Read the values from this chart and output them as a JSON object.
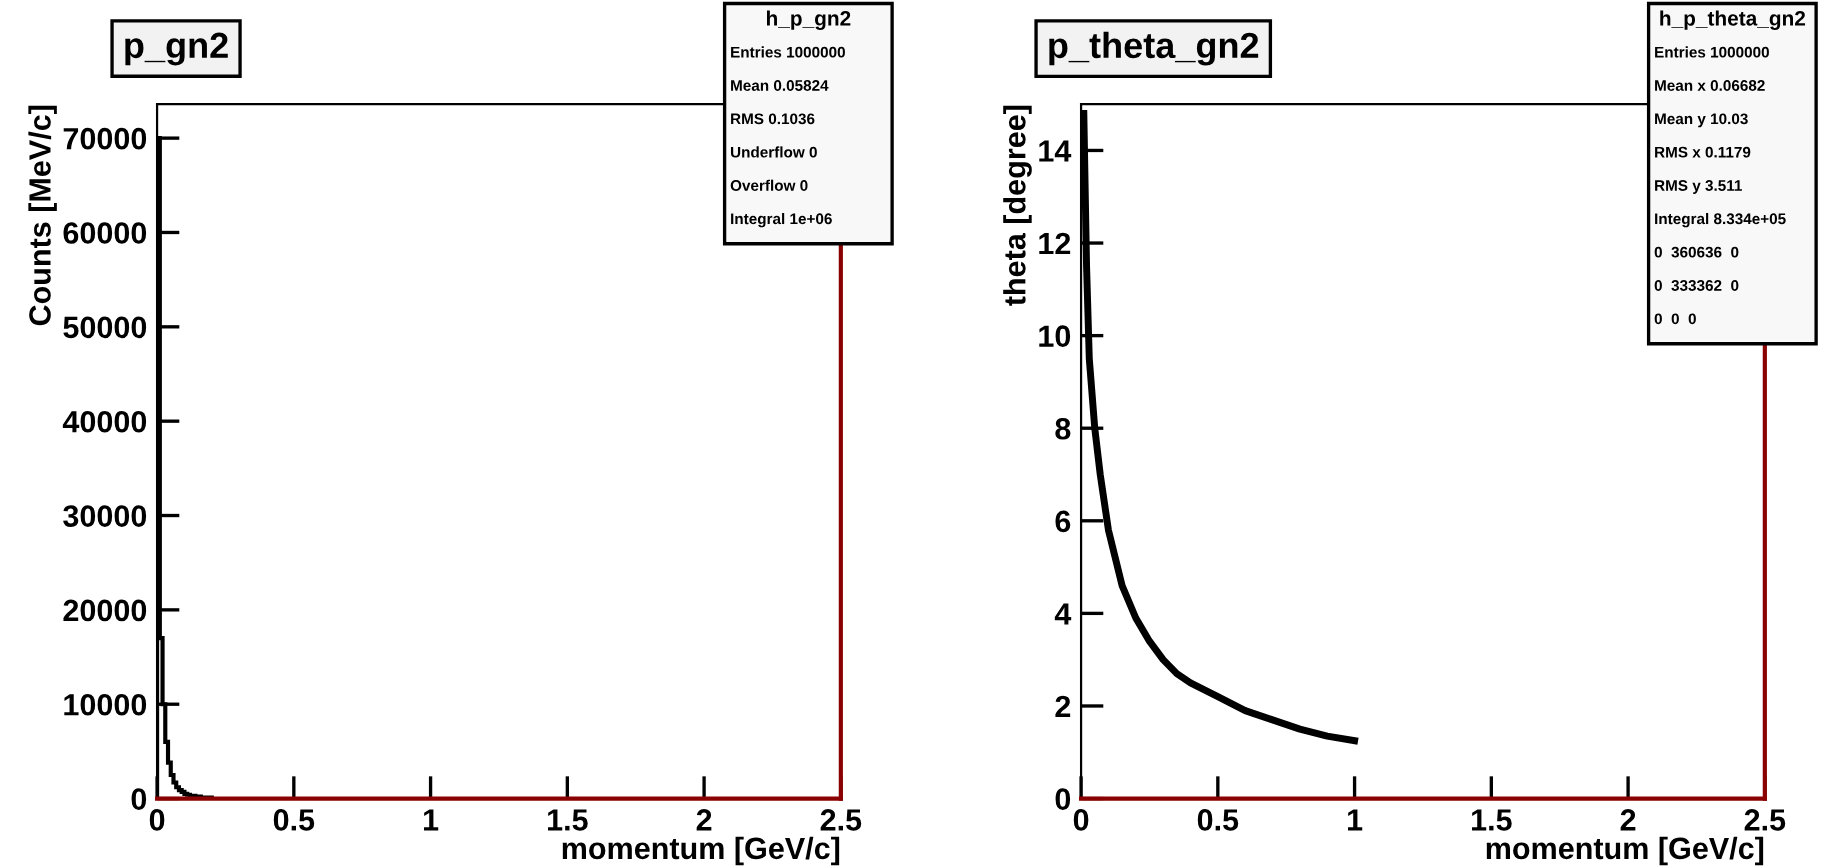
{
  "chart_data": [
    {
      "type": "histogram",
      "title": "p_gn2",
      "xlabel": "momentum [GeV/c]",
      "ylabel": "Counts [MeV/c]",
      "bins": [
        0,
        0.01,
        0.02,
        0.03,
        0.04,
        0.05,
        0.06,
        0.07,
        0.08,
        0.09,
        0.1,
        0.11,
        0.12,
        0.13,
        0.14,
        0.15,
        0.16,
        0.17,
        0.18,
        0.19,
        0.2
      ],
      "values": [
        70000,
        17000,
        10000,
        6000,
        3800,
        2500,
        1700,
        1200,
        900,
        700,
        500,
        400,
        300,
        300,
        200,
        200,
        100,
        100,
        100,
        100
      ],
      "color": "#000000",
      "xlim": [
        0,
        2.5
      ],
      "ylim": [
        0,
        73600
      ],
      "xticks": [
        0,
        0.5,
        1,
        1.5,
        2,
        2.5
      ],
      "yticks": [
        0,
        10000,
        20000,
        30000,
        40000,
        50000,
        60000,
        70000
      ],
      "annotations": [
        "h_p_gn2",
        "Entries 1000000",
        "Mean 0.05824",
        "RMS 0.1036",
        "Underflow 0",
        "Overflow 0",
        "Integral 1e+06"
      ]
    },
    {
      "type": "line",
      "title": "p_theta_gn2",
      "xlabel": "momentum [GeV/c]",
      "ylabel": "theta [degree]",
      "x": [
        0.01,
        0.02,
        0.03,
        0.05,
        0.07,
        0.1,
        0.15,
        0.2,
        0.25,
        0.3,
        0.35,
        0.4,
        0.5,
        0.6,
        0.7,
        0.8,
        0.9,
        1.0
      ],
      "values": [
        14.8,
        11.5,
        9.5,
        8,
        7,
        5.8,
        4.6,
        3.9,
        3.4,
        3.0,
        2.7,
        2.5,
        2.2,
        1.9,
        1.7,
        1.5,
        1.35,
        1.25
      ],
      "color": "#000000",
      "xlim": [
        0,
        2.5
      ],
      "ylim": [
        0,
        15
      ],
      "xticks": [
        0,
        0.5,
        1,
        1.5,
        2,
        2.5
      ],
      "yticks": [
        0,
        2,
        4,
        6,
        8,
        10,
        12,
        14
      ],
      "annotations": [
        "h_p_theta_gn2",
        "Entries 1000000",
        "Mean x 0.06682",
        "Mean y 10.03",
        "RMS x 0.1179",
        "RMS y 3.511",
        "Integral 8.334e+05",
        "0  360636  0",
        "0  333362  0",
        "0  0  0"
      ]
    }
  ]
}
